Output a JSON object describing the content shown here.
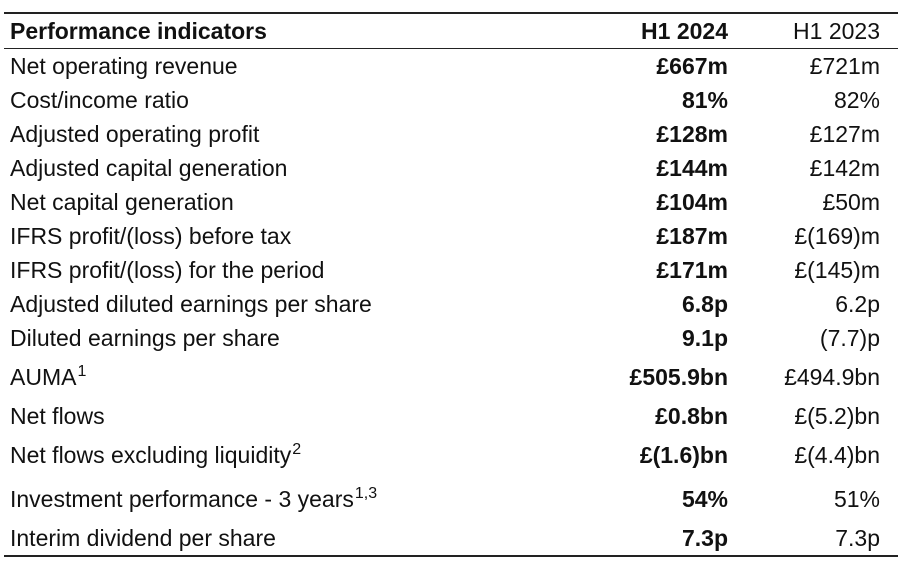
{
  "table": {
    "headers": {
      "label": "Performance indicators",
      "current": "H1 2024",
      "previous": "H1 2023"
    },
    "rows": [
      {
        "label": "Net operating revenue",
        "sup": "",
        "current": "£667m",
        "previous": "£721m"
      },
      {
        "label": "Cost/income ratio",
        "sup": "",
        "current": "81%",
        "previous": "82%"
      },
      {
        "label": "Adjusted operating profit",
        "sup": "",
        "current": "£128m",
        "previous": "£127m"
      },
      {
        "label": "Adjusted capital generation",
        "sup": "",
        "current": "£144m",
        "previous": "£142m"
      },
      {
        "label": "Net capital generation",
        "sup": "",
        "current": "£104m",
        "previous": "£50m"
      },
      {
        "label": "IFRS profit/(loss) before tax",
        "sup": "",
        "current": "£187m",
        "previous": "£(169)m"
      },
      {
        "label": "IFRS profit/(loss) for the period",
        "sup": "",
        "current": "£171m",
        "previous": "£(145)m"
      },
      {
        "label": "Adjusted diluted earnings per share",
        "sup": "",
        "current": "6.8p",
        "previous": "6.2p"
      },
      {
        "label": "Diluted earnings per share",
        "sup": "",
        "current": "9.1p",
        "previous": "(7.7)p"
      },
      {
        "label": "AUMA",
        "sup": "1",
        "current": "£505.9bn",
        "previous": "£494.9bn"
      },
      {
        "label": "Net flows",
        "sup": "",
        "current": "£0.8bn",
        "previous": "£(5.2)bn"
      },
      {
        "label": "Net flows excluding liquidity",
        "sup": "2",
        "current": "£(1.6)bn",
        "previous": "£(4.4)bn"
      },
      {
        "label": "Investment performance - 3 years",
        "sup": "1,3",
        "current": "54%",
        "previous": "51%"
      },
      {
        "label": "Interim dividend per share",
        "sup": "",
        "current": "7.3p",
        "previous": "7.3p"
      }
    ]
  }
}
